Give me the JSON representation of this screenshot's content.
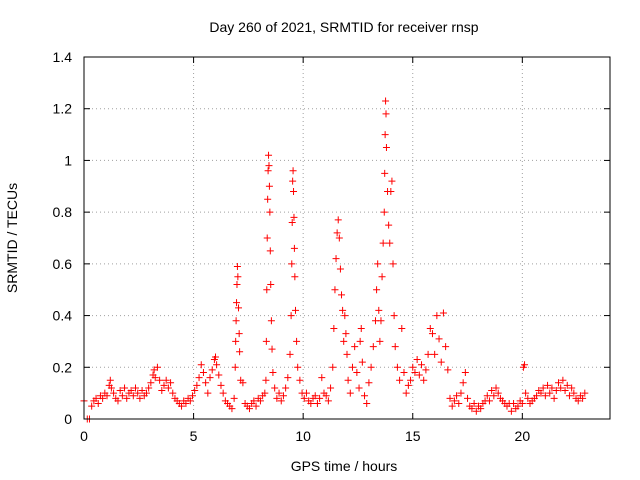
{
  "chart_data": {
    "type": "scatter",
    "title": "Day 260 of 2021, SRMTID for receiver rnsp",
    "xlabel": "GPS time / hours",
    "ylabel": "SRMTID / TECUs",
    "xlim": [
      0,
      24
    ],
    "ylim": [
      0,
      1.4
    ],
    "xticks": [
      "0",
      "5",
      "10",
      "15",
      "20"
    ],
    "xtick_values": [
      0,
      5,
      10,
      15,
      20
    ],
    "yticks": [
      "0",
      "0.2",
      "0.4",
      "0.6",
      "0.8",
      "1",
      "1.2",
      "1.4"
    ],
    "ytick_values": [
      0,
      0.2,
      0.4,
      0.6,
      0.8,
      1.0,
      1.2,
      1.4
    ],
    "grid": true,
    "marker": "+",
    "color": "#ff0000",
    "series": [
      {
        "name": "SRMTID",
        "points": [
          [
            0.0,
            0.07
          ],
          [
            0.15,
            0.0
          ],
          [
            0.25,
            0.0
          ],
          [
            0.35,
            0.05
          ],
          [
            0.45,
            0.07
          ],
          [
            0.55,
            0.08
          ],
          [
            0.65,
            0.06
          ],
          [
            0.75,
            0.09
          ],
          [
            0.85,
            0.08
          ],
          [
            0.95,
            0.1
          ],
          [
            1.05,
            0.09
          ],
          [
            1.15,
            0.13
          ],
          [
            1.2,
            0.15
          ],
          [
            1.25,
            0.12
          ],
          [
            1.35,
            0.1
          ],
          [
            1.45,
            0.08
          ],
          [
            1.55,
            0.07
          ],
          [
            1.65,
            0.11
          ],
          [
            1.75,
            0.09
          ],
          [
            1.85,
            0.12
          ],
          [
            1.95,
            0.08
          ],
          [
            2.05,
            0.1
          ],
          [
            2.15,
            0.11
          ],
          [
            2.25,
            0.09
          ],
          [
            2.35,
            0.12
          ],
          [
            2.45,
            0.1
          ],
          [
            2.55,
            0.08
          ],
          [
            2.65,
            0.11
          ],
          [
            2.75,
            0.09
          ],
          [
            2.85,
            0.1
          ],
          [
            2.95,
            0.12
          ],
          [
            3.05,
            0.14
          ],
          [
            3.15,
            0.17
          ],
          [
            3.2,
            0.19
          ],
          [
            3.25,
            0.16
          ],
          [
            3.35,
            0.2
          ],
          [
            3.45,
            0.15
          ],
          [
            3.55,
            0.11
          ],
          [
            3.65,
            0.13
          ],
          [
            3.75,
            0.15
          ],
          [
            3.85,
            0.12
          ],
          [
            3.95,
            0.14
          ],
          [
            4.05,
            0.1
          ],
          [
            4.15,
            0.08
          ],
          [
            4.25,
            0.07
          ],
          [
            4.35,
            0.06
          ],
          [
            4.45,
            0.05
          ],
          [
            4.55,
            0.07
          ],
          [
            4.65,
            0.06
          ],
          [
            4.75,
            0.08
          ],
          [
            4.85,
            0.07
          ],
          [
            4.95,
            0.09
          ],
          [
            5.05,
            0.11
          ],
          [
            5.15,
            0.13
          ],
          [
            5.25,
            0.16
          ],
          [
            5.35,
            0.21
          ],
          [
            5.45,
            0.18
          ],
          [
            5.55,
            0.14
          ],
          [
            5.65,
            0.1
          ],
          [
            5.75,
            0.16
          ],
          [
            5.85,
            0.19
          ],
          [
            5.95,
            0.23
          ],
          [
            6.0,
            0.24
          ],
          [
            6.05,
            0.21
          ],
          [
            6.15,
            0.17
          ],
          [
            6.25,
            0.13
          ],
          [
            6.35,
            0.1
          ],
          [
            6.45,
            0.07
          ],
          [
            6.55,
            0.06
          ],
          [
            6.65,
            0.05
          ],
          [
            6.75,
            0.04
          ],
          [
            6.85,
            0.08
          ],
          [
            6.9,
            0.2
          ],
          [
            6.92,
            0.3
          ],
          [
            6.94,
            0.38
          ],
          [
            6.96,
            0.45
          ],
          [
            6.98,
            0.52
          ],
          [
            7.0,
            0.59
          ],
          [
            7.02,
            0.55
          ],
          [
            7.05,
            0.43
          ],
          [
            7.08,
            0.33
          ],
          [
            7.1,
            0.26
          ],
          [
            7.15,
            0.15
          ],
          [
            7.25,
            0.14
          ],
          [
            7.35,
            0.06
          ],
          [
            7.45,
            0.05
          ],
          [
            7.55,
            0.04
          ],
          [
            7.65,
            0.06
          ],
          [
            7.75,
            0.07
          ],
          [
            7.85,
            0.05
          ],
          [
            7.95,
            0.08
          ],
          [
            8.05,
            0.07
          ],
          [
            8.15,
            0.09
          ],
          [
            8.25,
            0.1
          ],
          [
            8.3,
            0.15
          ],
          [
            8.32,
            0.3
          ],
          [
            8.34,
            0.5
          ],
          [
            8.36,
            0.7
          ],
          [
            8.38,
            0.85
          ],
          [
            8.4,
            0.96
          ],
          [
            8.42,
            1.02
          ],
          [
            8.44,
            0.98
          ],
          [
            8.46,
            0.9
          ],
          [
            8.48,
            0.8
          ],
          [
            8.5,
            0.65
          ],
          [
            8.52,
            0.52
          ],
          [
            8.55,
            0.38
          ],
          [
            8.58,
            0.27
          ],
          [
            8.62,
            0.18
          ],
          [
            8.7,
            0.12
          ],
          [
            8.8,
            0.08
          ],
          [
            8.9,
            0.1
          ],
          [
            9.0,
            0.07
          ],
          [
            9.1,
            0.09
          ],
          [
            9.2,
            0.12
          ],
          [
            9.3,
            0.16
          ],
          [
            9.4,
            0.25
          ],
          [
            9.45,
            0.4
          ],
          [
            9.48,
            0.6
          ],
          [
            9.5,
            0.76
          ],
          [
            9.52,
            0.92
          ],
          [
            9.54,
            0.96
          ],
          [
            9.56,
            0.88
          ],
          [
            9.58,
            0.78
          ],
          [
            9.6,
            0.66
          ],
          [
            9.62,
            0.55
          ],
          [
            9.65,
            0.42
          ],
          [
            9.7,
            0.3
          ],
          [
            9.75,
            0.2
          ],
          [
            9.85,
            0.15
          ],
          [
            9.95,
            0.1
          ],
          [
            10.05,
            0.08
          ],
          [
            10.15,
            0.1
          ],
          [
            10.25,
            0.07
          ],
          [
            10.35,
            0.06
          ],
          [
            10.45,
            0.08
          ],
          [
            10.55,
            0.09
          ],
          [
            10.65,
            0.06
          ],
          [
            10.75,
            0.08
          ],
          [
            10.85,
            0.16
          ],
          [
            10.95,
            0.1
          ],
          [
            11.05,
            0.09
          ],
          [
            11.15,
            0.07
          ],
          [
            11.25,
            0.12
          ],
          [
            11.35,
            0.2
          ],
          [
            11.4,
            0.35
          ],
          [
            11.45,
            0.5
          ],
          [
            11.5,
            0.62
          ],
          [
            11.55,
            0.72
          ],
          [
            11.6,
            0.77
          ],
          [
            11.65,
            0.7
          ],
          [
            11.7,
            0.58
          ],
          [
            11.75,
            0.48
          ],
          [
            11.8,
            0.42
          ],
          [
            11.85,
            0.3
          ],
          [
            11.9,
            0.4
          ],
          [
            11.95,
            0.33
          ],
          [
            12.0,
            0.25
          ],
          [
            12.05,
            0.15
          ],
          [
            12.15,
            0.1
          ],
          [
            12.25,
            0.2
          ],
          [
            12.35,
            0.28
          ],
          [
            12.45,
            0.18
          ],
          [
            12.55,
            0.12
          ],
          [
            12.6,
            0.3
          ],
          [
            12.65,
            0.35
          ],
          [
            12.7,
            0.22
          ],
          [
            12.8,
            0.09
          ],
          [
            12.9,
            0.06
          ],
          [
            13.0,
            0.14
          ],
          [
            13.1,
            0.2
          ],
          [
            13.2,
            0.28
          ],
          [
            13.3,
            0.38
          ],
          [
            13.35,
            0.5
          ],
          [
            13.4,
            0.6
          ],
          [
            13.45,
            0.42
          ],
          [
            13.5,
            0.3
          ],
          [
            13.55,
            0.38
          ],
          [
            13.6,
            0.55
          ],
          [
            13.65,
            0.68
          ],
          [
            13.7,
            0.8
          ],
          [
            13.72,
            0.95
          ],
          [
            13.74,
            1.1
          ],
          [
            13.76,
            1.23
          ],
          [
            13.78,
            1.18
          ],
          [
            13.8,
            1.05
          ],
          [
            13.85,
            0.88
          ],
          [
            13.9,
            0.75
          ],
          [
            13.95,
            0.68
          ],
          [
            14.0,
            0.88
          ],
          [
            14.05,
            0.92
          ],
          [
            14.1,
            0.6
          ],
          [
            14.15,
            0.4
          ],
          [
            14.2,
            0.28
          ],
          [
            14.3,
            0.2
          ],
          [
            14.4,
            0.15
          ],
          [
            14.5,
            0.35
          ],
          [
            14.6,
            0.18
          ],
          [
            14.7,
            0.1
          ],
          [
            14.8,
            0.13
          ],
          [
            14.9,
            0.15
          ],
          [
            15.0,
            0.2
          ],
          [
            15.1,
            0.18
          ],
          [
            15.2,
            0.23
          ],
          [
            15.3,
            0.17
          ],
          [
            15.4,
            0.21
          ],
          [
            15.5,
            0.15
          ],
          [
            15.6,
            0.19
          ],
          [
            15.7,
            0.25
          ],
          [
            15.8,
            0.35
          ],
          [
            15.9,
            0.33
          ],
          [
            16.0,
            0.25
          ],
          [
            16.1,
            0.4
          ],
          [
            16.2,
            0.31
          ],
          [
            16.3,
            0.22
          ],
          [
            16.4,
            0.41
          ],
          [
            16.5,
            0.28
          ],
          [
            16.6,
            0.19
          ],
          [
            16.7,
            0.08
          ],
          [
            16.8,
            0.05
          ],
          [
            16.9,
            0.07
          ],
          [
            17.0,
            0.09
          ],
          [
            17.1,
            0.06
          ],
          [
            17.2,
            0.1
          ],
          [
            17.3,
            0.14
          ],
          [
            17.4,
            0.18
          ],
          [
            17.5,
            0.08
          ],
          [
            17.6,
            0.05
          ],
          [
            17.7,
            0.04
          ],
          [
            17.8,
            0.06
          ],
          [
            17.9,
            0.03
          ],
          [
            18.0,
            0.05
          ],
          [
            18.1,
            0.04
          ],
          [
            18.2,
            0.06
          ],
          [
            18.3,
            0.07
          ],
          [
            18.4,
            0.09
          ],
          [
            18.5,
            0.07
          ],
          [
            18.6,
            0.11
          ],
          [
            18.7,
            0.09
          ],
          [
            18.8,
            0.12
          ],
          [
            18.9,
            0.1
          ],
          [
            19.0,
            0.08
          ],
          [
            19.1,
            0.07
          ],
          [
            19.2,
            0.06
          ],
          [
            19.3,
            0.05
          ],
          [
            19.4,
            0.06
          ],
          [
            19.5,
            0.03
          ],
          [
            19.6,
            0.06
          ],
          [
            19.7,
            0.04
          ],
          [
            19.8,
            0.05
          ],
          [
            19.9,
            0.07
          ],
          [
            20.0,
            0.06
          ],
          [
            20.05,
            0.2
          ],
          [
            20.1,
            0.21
          ],
          [
            20.15,
            0.1
          ],
          [
            20.25,
            0.08
          ],
          [
            20.35,
            0.06
          ],
          [
            20.45,
            0.07
          ],
          [
            20.55,
            0.08
          ],
          [
            20.65,
            0.09
          ],
          [
            20.75,
            0.11
          ],
          [
            20.85,
            0.1
          ],
          [
            20.95,
            0.12
          ],
          [
            21.05,
            0.09
          ],
          [
            21.15,
            0.13
          ],
          [
            21.25,
            0.1
          ],
          [
            21.35,
            0.12
          ],
          [
            21.45,
            0.08
          ],
          [
            21.55,
            0.11
          ],
          [
            21.65,
            0.14
          ],
          [
            21.75,
            0.12
          ],
          [
            21.85,
            0.15
          ],
          [
            21.95,
            0.11
          ],
          [
            22.05,
            0.13
          ],
          [
            22.15,
            0.09
          ],
          [
            22.25,
            0.12
          ],
          [
            22.35,
            0.1
          ],
          [
            22.45,
            0.08
          ],
          [
            22.55,
            0.07
          ],
          [
            22.65,
            0.09
          ],
          [
            22.75,
            0.08
          ],
          [
            22.85,
            0.1
          ]
        ]
      }
    ]
  }
}
